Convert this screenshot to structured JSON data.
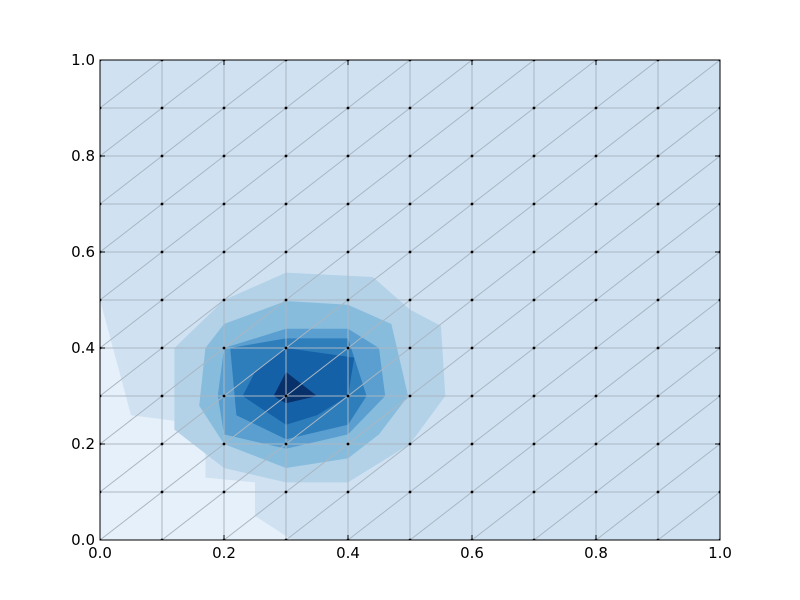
{
  "chart_data": {
    "type": "heatmap",
    "subtype": "filled-contour-on-triangular-mesh",
    "title": "",
    "xlabel": "",
    "ylabel": "",
    "xlim": [
      0,
      1
    ],
    "ylim": [
      0,
      1
    ],
    "x_ticks": [
      0,
      0.2,
      0.4,
      0.6,
      0.8,
      1.0
    ],
    "x_tick_labels": [
      "0.0",
      "0.2",
      "0.4",
      "0.6",
      "0.8",
      "1.0"
    ],
    "y_ticks": [
      0,
      0.2,
      0.4,
      0.6,
      0.8,
      1.0
    ],
    "y_tick_labels": [
      "0.0",
      "0.2",
      "0.4",
      "0.6",
      "0.8",
      "1.0"
    ],
    "colormap": "Blues",
    "mesh": {
      "x": [
        0,
        0.1,
        0.2,
        0.3,
        0.4,
        0.5,
        0.6,
        0.7,
        0.8,
        0.9,
        1.0
      ],
      "y": [
        0,
        0.1,
        0.2,
        0.3,
        0.4,
        0.5,
        0.6,
        0.7,
        0.8,
        0.9,
        1.0
      ],
      "triangulation": "each grid cell split along its lower-left to upper-right diagonal",
      "line_color": "#a9b6c2",
      "marker_color": "#000000"
    },
    "contour_levels": [
      {
        "level": 0,
        "color": "#e6f0fa"
      },
      {
        "level": 1,
        "color": "#d0e2f2"
      },
      {
        "level": 2,
        "color": "#b3d2e8"
      },
      {
        "level": 3,
        "color": "#88bcdd"
      },
      {
        "level": 4,
        "color": "#5a9fd0"
      },
      {
        "level": 5,
        "color": "#2e7ebc"
      },
      {
        "level": 6,
        "color": "#1561a8"
      },
      {
        "level": 7,
        "color": "#08306b"
      }
    ],
    "regions": [
      {
        "level": 1,
        "outline": [
          [
            0,
            1
          ],
          [
            1,
            1
          ],
          [
            1,
            0
          ],
          [
            0.31,
            0
          ],
          [
            0.25,
            0.05
          ],
          [
            0.25,
            0.12
          ],
          [
            0.17,
            0.13
          ],
          [
            0.17,
            0.24
          ],
          [
            0.05,
            0.26
          ],
          [
            0,
            0.5
          ]
        ]
      },
      {
        "level": 2,
        "outline": [
          [
            0.12,
            0.4
          ],
          [
            0.2,
            0.5
          ],
          [
            0.3,
            0.557
          ],
          [
            0.44,
            0.548
          ],
          [
            0.5,
            0.48
          ],
          [
            0.55,
            0.446
          ],
          [
            0.557,
            0.3
          ],
          [
            0.5,
            0.2
          ],
          [
            0.4,
            0.12
          ],
          [
            0.3,
            0.12
          ],
          [
            0.2,
            0.15
          ],
          [
            0.12,
            0.23
          ]
        ]
      },
      {
        "level": 3,
        "outline": [
          [
            0.17,
            0.4
          ],
          [
            0.2,
            0.45
          ],
          [
            0.3,
            0.498
          ],
          [
            0.4,
            0.49
          ],
          [
            0.47,
            0.45
          ],
          [
            0.497,
            0.3
          ],
          [
            0.45,
            0.22
          ],
          [
            0.4,
            0.17
          ],
          [
            0.3,
            0.15
          ],
          [
            0.2,
            0.2
          ],
          [
            0.16,
            0.28
          ]
        ]
      },
      {
        "level": 4,
        "outline": [
          [
            0.2,
            0.4
          ],
          [
            0.3,
            0.44
          ],
          [
            0.4,
            0.44
          ],
          [
            0.45,
            0.4
          ],
          [
            0.46,
            0.3
          ],
          [
            0.4,
            0.22
          ],
          [
            0.3,
            0.19
          ],
          [
            0.2,
            0.22
          ],
          [
            0.19,
            0.3
          ]
        ]
      },
      {
        "level": 5,
        "outline": [
          [
            0.21,
            0.4
          ],
          [
            0.3,
            0.42
          ],
          [
            0.4,
            0.42
          ],
          [
            0.43,
            0.3
          ],
          [
            0.4,
            0.24
          ],
          [
            0.3,
            0.21
          ],
          [
            0.22,
            0.26
          ]
        ]
      },
      {
        "level": 6,
        "outline": [
          [
            0.25,
            0.35
          ],
          [
            0.3,
            0.4
          ],
          [
            0.41,
            0.38
          ],
          [
            0.4,
            0.3
          ],
          [
            0.35,
            0.26
          ],
          [
            0.3,
            0.24
          ],
          [
            0.23,
            0.3
          ]
        ]
      },
      {
        "level": 7,
        "outline": [
          [
            0.28,
            0.3
          ],
          [
            0.3,
            0.35
          ],
          [
            0.35,
            0.3
          ],
          [
            0.3,
            0.285
          ]
        ]
      }
    ]
  }
}
